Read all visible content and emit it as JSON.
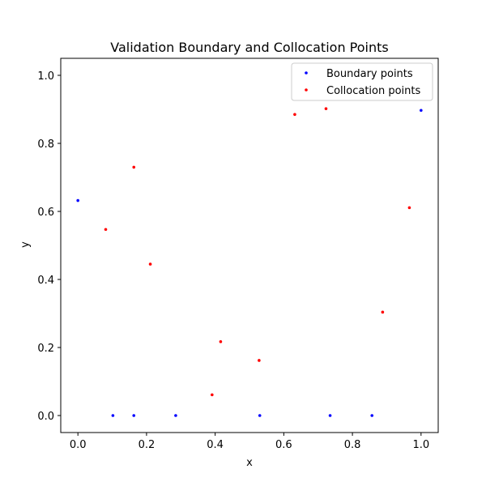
{
  "chart_data": {
    "type": "scatter",
    "title": "Validation Boundary and Collocation Points",
    "xlabel": "x",
    "ylabel": "y",
    "xlim": [
      -0.05,
      1.05
    ],
    "ylim": [
      -0.05,
      1.05
    ],
    "xticks": [
      0.0,
      0.2,
      0.4,
      0.6,
      0.8,
      1.0
    ],
    "yticks": [
      0.0,
      0.2,
      0.4,
      0.6,
      0.8,
      1.0
    ],
    "xtick_labels": [
      "0.0",
      "0.2",
      "0.4",
      "0.6",
      "0.8",
      "1.0"
    ],
    "ytick_labels": [
      "0.0",
      "0.2",
      "0.4",
      "0.6",
      "0.8",
      "1.0"
    ],
    "grid": false,
    "legend_position": "top-right",
    "series": [
      {
        "name": "Boundary points",
        "color": "#0000ff",
        "points": [
          [
            0.0,
            0.632
          ],
          [
            0.102,
            0.0
          ],
          [
            0.163,
            0.0
          ],
          [
            0.285,
            0.0
          ],
          [
            0.53,
            0.0
          ],
          [
            0.735,
            0.0
          ],
          [
            0.857,
            0.0
          ],
          [
            1.0,
            0.897
          ]
        ]
      },
      {
        "name": "Collocation points",
        "color": "#ff0000",
        "points": [
          [
            0.081,
            0.547
          ],
          [
            0.163,
            0.73
          ],
          [
            0.211,
            0.445
          ],
          [
            0.391,
            0.061
          ],
          [
            0.416,
            0.217
          ],
          [
            0.528,
            0.162
          ],
          [
            0.632,
            0.885
          ],
          [
            0.723,
            0.902
          ],
          [
            0.888,
            0.304
          ],
          [
            0.966,
            0.611
          ]
        ]
      }
    ]
  }
}
